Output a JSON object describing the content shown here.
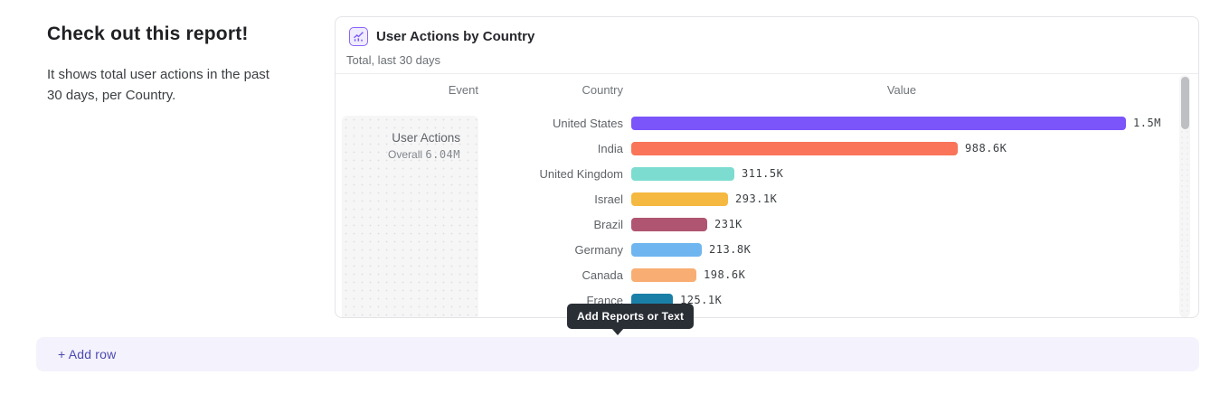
{
  "intro": {
    "title": "Check out this report!",
    "description": "It shows total user actions in the past 30 days, per Country."
  },
  "report_card": {
    "icon": "line-chart-icon",
    "title": "User Actions by Country",
    "subtitle": "Total, last 30 days",
    "columns": {
      "event": "Event",
      "country": "Country",
      "value": "Value"
    },
    "event": {
      "name": "User Actions",
      "overall_label": "Overall",
      "overall_value": "6.04M"
    }
  },
  "chart_data": {
    "type": "bar",
    "orientation": "horizontal",
    "title": "User Actions by Country",
    "xlabel": "Value",
    "ylabel": "Country",
    "xlim": [
      0,
      1560000
    ],
    "grid": false,
    "categories": [
      "United States",
      "India",
      "United Kingdom",
      "Israel",
      "Brazil",
      "Germany",
      "Canada",
      "France"
    ],
    "values": [
      1500000,
      988600,
      311500,
      293100,
      231000,
      213800,
      198600,
      125100
    ],
    "value_labels": [
      "1.5M",
      "988.6K",
      "311.5K",
      "293.1K",
      "231K",
      "213.8K",
      "198.6K",
      "125.1K"
    ],
    "bar_colors": [
      "#7b55f9",
      "#f97458",
      "#7cdcd0",
      "#f5b840",
      "#b05571",
      "#6fb6f0",
      "#f8ae72",
      "#1a7fa6"
    ]
  },
  "tooltip": {
    "label": "Add Reports or Text"
  },
  "add_row": {
    "label": "+ Add row"
  },
  "colors": {
    "accent_purple": "#7b55f9",
    "add_row_bg": "#f4f2fc",
    "add_row_text": "#4b4ab0",
    "tooltip_bg": "#2a2e35",
    "card_border": "#e4e4e8"
  }
}
